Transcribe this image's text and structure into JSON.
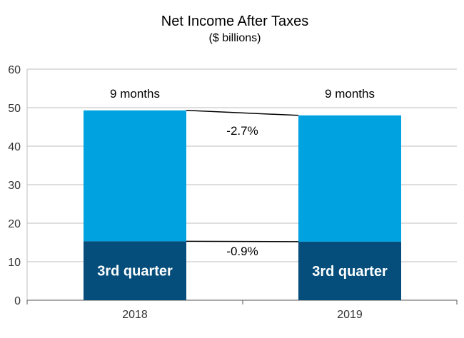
{
  "chart_data": {
    "type": "bar",
    "stacked": true,
    "title": "Net Income After Taxes",
    "subtitle": "($ billions)",
    "categories": [
      "2018",
      "2019"
    ],
    "series": [
      {
        "name": "3rd quarter",
        "values": [
          15.3,
          15.2
        ],
        "color": "#054e7b"
      },
      {
        "name": "9 months",
        "values": [
          49.3,
          48.0
        ],
        "color": "#00a3e0"
      }
    ],
    "segment_labels": [
      "3rd quarter",
      "3rd quarter"
    ],
    "top_labels": [
      "9 months",
      "9 months"
    ],
    "changes": {
      "nine_months": "-2.7%",
      "third_quarter": "-0.9%"
    },
    "ylim": [
      0,
      60
    ],
    "yticks": [
      0,
      10,
      20,
      30,
      40,
      50,
      60
    ],
    "grid": true
  }
}
